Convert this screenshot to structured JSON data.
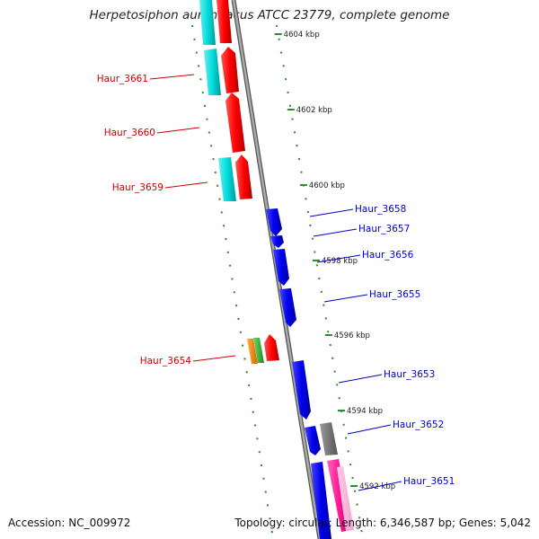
{
  "title": "Herpetosiphon aurantiacus ATCC 23779, complete genome",
  "footer": {
    "accession": "Accession: NC_009972",
    "summary": "Topology: circular; Length: 6,346,587 bp; Genes: 5,042"
  },
  "scale_ticks": [
    {
      "label": "4604 kbp",
      "pos": 4604
    },
    {
      "label": "4602 kbp",
      "pos": 4602
    },
    {
      "label": "4600 kbp",
      "pos": 4600
    },
    {
      "label": "4598 kbp",
      "pos": 4598
    },
    {
      "label": "4596 kbp",
      "pos": 4596
    },
    {
      "label": "4594 kbp",
      "pos": 4594
    },
    {
      "label": "4592 kbp",
      "pos": 4592
    }
  ],
  "genes": [
    {
      "name": "Haur_3661",
      "strand": "reverse"
    },
    {
      "name": "Haur_3660",
      "strand": "reverse"
    },
    {
      "name": "Haur_3659",
      "strand": "reverse"
    },
    {
      "name": "Haur_3658",
      "strand": "forward"
    },
    {
      "name": "Haur_3657",
      "strand": "forward"
    },
    {
      "name": "Haur_3656",
      "strand": "forward"
    },
    {
      "name": "Haur_3655",
      "strand": "forward"
    },
    {
      "name": "Haur_3654",
      "strand": "reverse"
    },
    {
      "name": "Haur_3653",
      "strand": "forward"
    },
    {
      "name": "Haur_3652",
      "strand": "forward"
    },
    {
      "name": "Haur_3651",
      "strand": "forward"
    }
  ],
  "colors": {
    "reverse_cds": "#ff0000",
    "forward_cds": "#0000ee",
    "reverse_gene": "#00dddd",
    "forward_gene_pink": "#ff1493",
    "other_gene": "#777777",
    "orange_feature": "#ff8c00",
    "green_feature": "#33bb33",
    "backbone": "#888888",
    "tick_green": "#2d8a2d",
    "reverse_label": "#cc0000",
    "forward_label": "#0000cc"
  }
}
